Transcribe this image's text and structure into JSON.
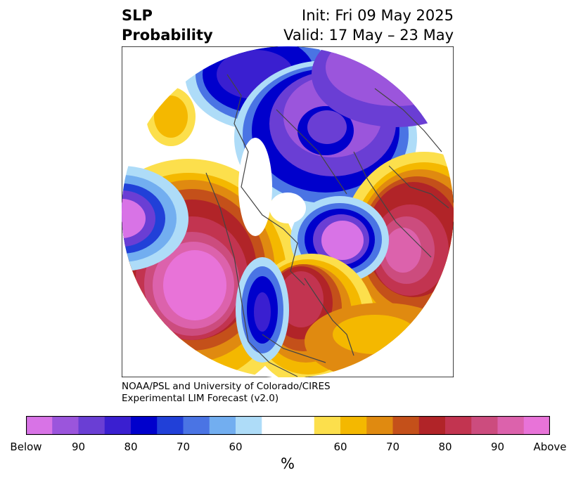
{
  "title": {
    "left_line1": "SLP",
    "left_line2": "Probability",
    "right_line1": "Init: Fri 09 May 2025",
    "right_line2": "Valid: 17 May – 23 May"
  },
  "credit": {
    "line1": "NOAA/PSL and University of Colorado/CIRES",
    "line2": "Experimental LIM Forecast (v2.0)"
  },
  "colorbar": {
    "unit": "%",
    "colors": [
      "#d873e6",
      "#9b55dc",
      "#6a3ed4",
      "#3a1fd0",
      "#0000cc",
      "#2140d8",
      "#4a74e4",
      "#72aef0",
      "#aedcf8",
      "#ffffff",
      "#ffffff",
      "#fcdf4c",
      "#f4b800",
      "#e08a10",
      "#c4501a",
      "#b12428",
      "#c23450",
      "#cc4c7e",
      "#dc62ac",
      "#e873d8"
    ],
    "ticks": [
      "Below",
      "90",
      "80",
      "70",
      "60",
      "60",
      "70",
      "80",
      "90",
      "Above"
    ]
  },
  "map_regions": {
    "blue_low_colors": [
      "#aedcf8",
      "#72aef0",
      "#4a74e4",
      "#2140d8",
      "#0000cc",
      "#6a3ed4",
      "#d873e6"
    ],
    "warm_high_colors": [
      "#fcdf4c",
      "#f4b800",
      "#e08a10",
      "#c4501a",
      "#b12428",
      "#c23450",
      "#dc62ac",
      "#e873d8"
    ]
  }
}
